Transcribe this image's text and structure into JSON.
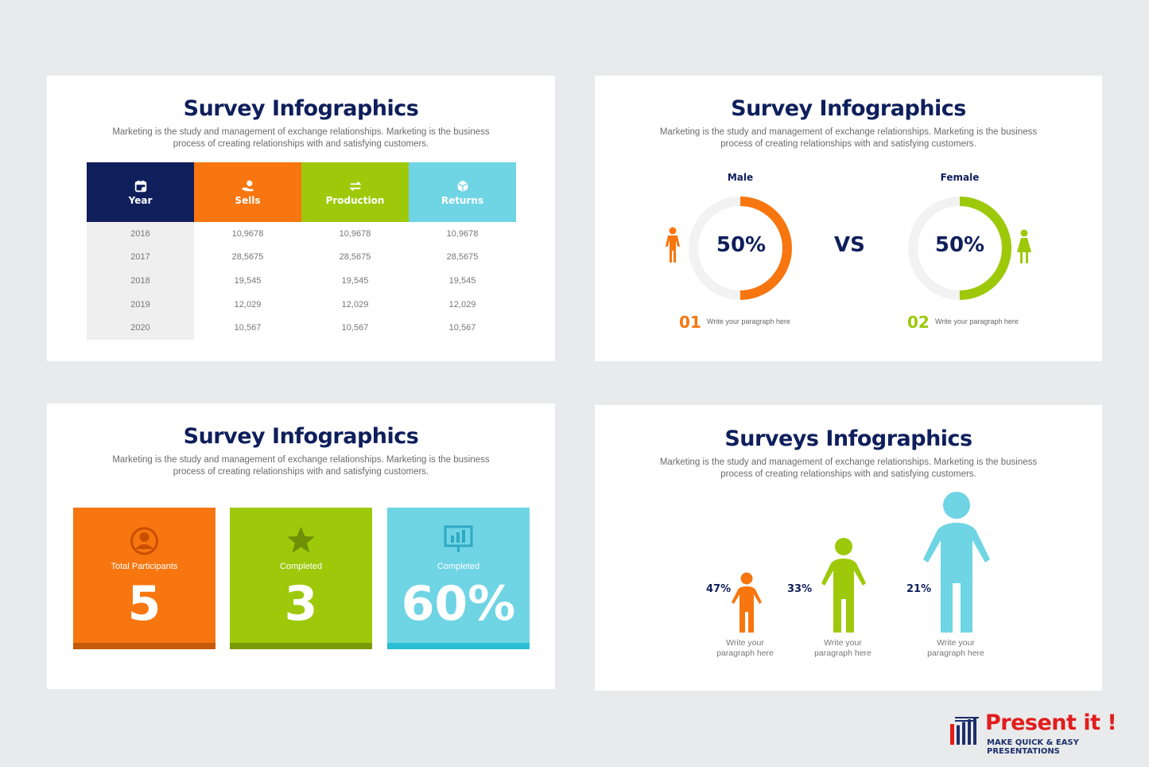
{
  "colors": {
    "navy": "#0f1f5c",
    "orange": "#f7760f",
    "green": "#9dc90a",
    "cyan": "#6fd4e4"
  },
  "slide1": {
    "title": "Survey Infographics",
    "subtitle_line1": "Marketing is the study and management of exchange relationships. Marketing is the business",
    "subtitle_line2": "process of creating relationships with and satisfying customers.",
    "headers": [
      {
        "label": "Year",
        "icon": "calendar-icon"
      },
      {
        "label": "Sells",
        "icon": "hand-coin-icon"
      },
      {
        "label": "Production",
        "icon": "arrows-exchange-icon"
      },
      {
        "label": "Returns",
        "icon": "box-icon"
      }
    ],
    "rows": [
      [
        "2016",
        "10,9678",
        "10,9678",
        "10,9678"
      ],
      [
        "2017",
        "28,5675",
        "28,5675",
        "28,5675"
      ],
      [
        "2018",
        "19,545",
        "19,545",
        "19,545"
      ],
      [
        "2019",
        "12,029",
        "12,029",
        "12,029"
      ],
      [
        "2020",
        "10,567",
        "10,567",
        "10,567"
      ]
    ]
  },
  "slide2": {
    "title": "Survey Infographics",
    "subtitle_line1": "Marketing is the study and management of exchange relationships. Marketing is the business",
    "subtitle_line2": "process of creating relationships with and satisfying customers.",
    "vs": "VS",
    "male": {
      "label": "Male",
      "percent": "50%",
      "fraction": 0.5,
      "number": "01",
      "text": "Write your paragraph here",
      "icon": "male-person-icon"
    },
    "female": {
      "label": "Female",
      "percent": "50%",
      "fraction": 0.5,
      "number": "02",
      "text": "Write your paragraph here",
      "icon": "female-person-icon"
    }
  },
  "slide3": {
    "title": "Survey Infographics",
    "subtitle_line1": "Marketing is the study and management of exchange relationships. Marketing is the business",
    "subtitle_line2": "process of creating relationships with and satisfying customers.",
    "cards": [
      {
        "label": "Total Participants",
        "value": "5",
        "icon": "user-circle-icon"
      },
      {
        "label": "Completed",
        "value": "3",
        "icon": "star-icon"
      },
      {
        "label": "Completed",
        "value": "60%",
        "icon": "presentation-chart-icon"
      }
    ]
  },
  "slide4": {
    "title": "Surveys Infographics",
    "subtitle_line1": "Marketing is the study and management of exchange relationships. Marketing is the business",
    "subtitle_line2": "process of creating relationships with and satisfying customers.",
    "people": [
      {
        "percent": "47%",
        "line1": "Write your",
        "line2": "paragraph here",
        "icon": "person-icon"
      },
      {
        "percent": "33%",
        "line1": "Write your",
        "line2": "paragraph here",
        "icon": "person-icon"
      },
      {
        "percent": "21%",
        "line1": "Write your",
        "line2": "paragraph here",
        "icon": "person-icon"
      }
    ]
  },
  "logo": {
    "name": "Present it !",
    "tagline": "MAKE QUICK & EASY PRESENTATIONS",
    "icon": "logo-lines-icon"
  }
}
